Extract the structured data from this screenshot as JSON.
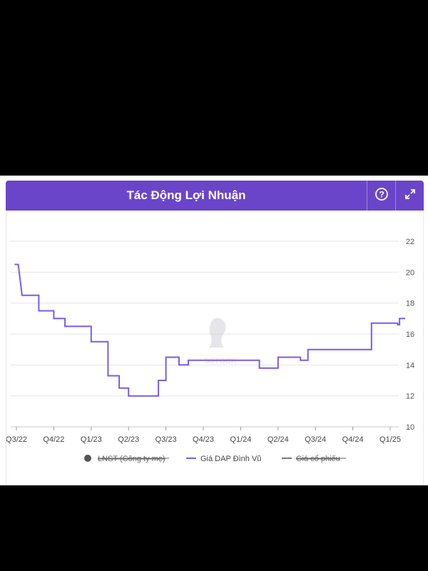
{
  "header": {
    "title": "Tác Động Lợi Nhuận",
    "help_icon": "question-circle-icon",
    "expand_icon": "expand-arrows-icon"
  },
  "watermark": "SSTOCK",
  "colors": {
    "header_bg": "#6a45c9",
    "series_line": "#7b5be6",
    "grid": "#e4e4ec",
    "legend_disabled": "#777777"
  },
  "chart_data": {
    "type": "line",
    "step": true,
    "y_axis_position": "right",
    "ylim": [
      10,
      22
    ],
    "yticks": [
      10,
      12,
      14,
      16,
      18,
      20,
      22
    ],
    "grid": true,
    "x_categories": [
      "Q3/22",
      "Q4/22",
      "Q1/23",
      "Q2/23",
      "Q3/23",
      "Q4/23",
      "Q1/24",
      "Q2/24",
      "Q3/24",
      "Q4/24",
      "Q1/25"
    ],
    "legend_position": "bottom",
    "legend": [
      {
        "label": "LNST (Công ty mẹ)",
        "marker": "dot",
        "hidden": true
      },
      {
        "label": "Giá DAP Đình Vũ",
        "marker": "line",
        "hidden": false
      },
      {
        "label": "Giá cổ phiếu",
        "marker": "line",
        "hidden": true
      }
    ],
    "series": [
      {
        "name": "Giá DAP Đình Vũ",
        "points": [
          [
            -0.05,
            20.5
          ],
          [
            0.05,
            20.5
          ],
          [
            0.15,
            18.5
          ],
          [
            0.6,
            18.5
          ],
          [
            0.6,
            17.5
          ],
          [
            1.0,
            17.5
          ],
          [
            1.0,
            17.0
          ],
          [
            1.3,
            17.0
          ],
          [
            1.3,
            16.5
          ],
          [
            2.0,
            16.5
          ],
          [
            2.0,
            15.5
          ],
          [
            2.45,
            15.5
          ],
          [
            2.45,
            13.3
          ],
          [
            2.75,
            13.3
          ],
          [
            2.75,
            12.5
          ],
          [
            3.0,
            12.5
          ],
          [
            3.0,
            12.0
          ],
          [
            3.8,
            12.0
          ],
          [
            3.8,
            13.0
          ],
          [
            4.0,
            13.0
          ],
          [
            4.0,
            14.5
          ],
          [
            4.35,
            14.5
          ],
          [
            4.35,
            14.0
          ],
          [
            4.6,
            14.0
          ],
          [
            4.6,
            14.3
          ],
          [
            6.5,
            14.3
          ],
          [
            6.5,
            13.8
          ],
          [
            7.0,
            13.8
          ],
          [
            7.0,
            14.5
          ],
          [
            7.6,
            14.5
          ],
          [
            7.6,
            14.3
          ],
          [
            7.8,
            14.3
          ],
          [
            7.8,
            15.0
          ],
          [
            9.5,
            15.0
          ],
          [
            9.5,
            16.7
          ],
          [
            10.2,
            16.7
          ],
          [
            10.2,
            16.6
          ],
          [
            10.25,
            16.6
          ],
          [
            10.25,
            17.0
          ],
          [
            10.4,
            17.0
          ]
        ]
      }
    ]
  }
}
